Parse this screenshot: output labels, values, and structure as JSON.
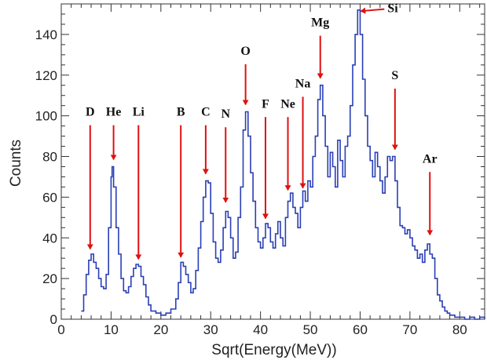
{
  "chart_data": {
    "type": "line",
    "title": "",
    "xlabel": "Sqrt(Energy(MeV))",
    "ylabel": "Counts",
    "xlim": [
      0,
      85
    ],
    "ylim": [
      0,
      155
    ],
    "x_ticks": [
      0,
      10,
      20,
      30,
      40,
      50,
      60,
      70,
      80
    ],
    "y_ticks": [
      0,
      20,
      40,
      60,
      80,
      100,
      120,
      140
    ],
    "x_minor_step": 2,
    "y_minor_step": 5,
    "line_color": "#2a3fb5",
    "arrow_color": "#e01010",
    "grid": false,
    "series": [
      {
        "values": [
          [
            4,
            4
          ],
          [
            4.5,
            12
          ],
          [
            5,
            22
          ],
          [
            5.5,
            29
          ],
          [
            6,
            32
          ],
          [
            6.5,
            28
          ],
          [
            7,
            25
          ],
          [
            7.5,
            20
          ],
          [
            8,
            16
          ],
          [
            8.5,
            15
          ],
          [
            9,
            22
          ],
          [
            9.5,
            45
          ],
          [
            10,
            70
          ],
          [
            10.2,
            75
          ],
          [
            10.5,
            65
          ],
          [
            11,
            45
          ],
          [
            11.5,
            32
          ],
          [
            12,
            20
          ],
          [
            12.5,
            14
          ],
          [
            13,
            13
          ],
          [
            13.5,
            16
          ],
          [
            14,
            21
          ],
          [
            14.5,
            25
          ],
          [
            15,
            27
          ],
          [
            15.5,
            26
          ],
          [
            16,
            21
          ],
          [
            16.5,
            17
          ],
          [
            17,
            11
          ],
          [
            17.5,
            7
          ],
          [
            18,
            4
          ],
          [
            19,
            3
          ],
          [
            20,
            2
          ],
          [
            21,
            3
          ],
          [
            22,
            5
          ],
          [
            23,
            10
          ],
          [
            23.5,
            18
          ],
          [
            24,
            28
          ],
          [
            24.5,
            26
          ],
          [
            25,
            22
          ],
          [
            25.5,
            18
          ],
          [
            26,
            13
          ],
          [
            26.5,
            15
          ],
          [
            27,
            24
          ],
          [
            27.5,
            35
          ],
          [
            28,
            48
          ],
          [
            28.5,
            60
          ],
          [
            29,
            68
          ],
          [
            29.5,
            67
          ],
          [
            30,
            52
          ],
          [
            30.5,
            38
          ],
          [
            31,
            30
          ],
          [
            31.5,
            28
          ],
          [
            32,
            34
          ],
          [
            32.5,
            45
          ],
          [
            33,
            53
          ],
          [
            33.5,
            50
          ],
          [
            34,
            40
          ],
          [
            34.5,
            30
          ],
          [
            35,
            33
          ],
          [
            35.5,
            50
          ],
          [
            36,
            65
          ],
          [
            36.5,
            93
          ],
          [
            37,
            102
          ],
          [
            37.5,
            90
          ],
          [
            38,
            72
          ],
          [
            38.5,
            58
          ],
          [
            39,
            45
          ],
          [
            39.5,
            38
          ],
          [
            40,
            35
          ],
          [
            40.5,
            40
          ],
          [
            41,
            47
          ],
          [
            41.5,
            45
          ],
          [
            42,
            38
          ],
          [
            42.5,
            35
          ],
          [
            43,
            42
          ],
          [
            43.5,
            48
          ],
          [
            44,
            40
          ],
          [
            44.5,
            36
          ],
          [
            45,
            50
          ],
          [
            45.5,
            58
          ],
          [
            46,
            62
          ],
          [
            46.5,
            55
          ],
          [
            47,
            52
          ],
          [
            47.5,
            45
          ],
          [
            48,
            55
          ],
          [
            48.5,
            63
          ],
          [
            49,
            58
          ],
          [
            49.5,
            68
          ],
          [
            50,
            65
          ],
          [
            50.5,
            80
          ],
          [
            51,
            90
          ],
          [
            51.5,
            108
          ],
          [
            52,
            115
          ],
          [
            52.5,
            100
          ],
          [
            53,
            85
          ],
          [
            53.5,
            70
          ],
          [
            54,
            82
          ],
          [
            54.5,
            75
          ],
          [
            55,
            65
          ],
          [
            55.5,
            88
          ],
          [
            56,
            78
          ],
          [
            56.5,
            70
          ],
          [
            57,
            85
          ],
          [
            57.5,
            90
          ],
          [
            58,
            105
          ],
          [
            58.5,
            125
          ],
          [
            59,
            140
          ],
          [
            59.5,
            152
          ],
          [
            60,
            140
          ],
          [
            60.5,
            118
          ],
          [
            61,
            100
          ],
          [
            61.5,
            85
          ],
          [
            62,
            78
          ],
          [
            62.5,
            70
          ],
          [
            63,
            82
          ],
          [
            63.5,
            75
          ],
          [
            64,
            68
          ],
          [
            64.5,
            62
          ],
          [
            65,
            70
          ],
          [
            65.5,
            80
          ],
          [
            66,
            78
          ],
          [
            66.5,
            80
          ],
          [
            67,
            68
          ],
          [
            67.5,
            55
          ],
          [
            68,
            46
          ],
          [
            68.5,
            45
          ],
          [
            69,
            42
          ],
          [
            69.5,
            44
          ],
          [
            70,
            40
          ],
          [
            70.5,
            36
          ],
          [
            71,
            34
          ],
          [
            71.5,
            30
          ],
          [
            72,
            32
          ],
          [
            72.5,
            28
          ],
          [
            73,
            34
          ],
          [
            73.5,
            37
          ],
          [
            74,
            32
          ],
          [
            74.5,
            30
          ],
          [
            75,
            20
          ],
          [
            75.5,
            12
          ],
          [
            76,
            9
          ],
          [
            76.5,
            6
          ],
          [
            77,
            4
          ],
          [
            77.5,
            3
          ],
          [
            78,
            2
          ],
          [
            79,
            1
          ],
          [
            80,
            1
          ],
          [
            81,
            0
          ],
          [
            82,
            1
          ],
          [
            83,
            0
          ],
          [
            84,
            1
          ],
          [
            85,
            0
          ]
        ]
      }
    ],
    "annotations": [
      {
        "label": "D",
        "x": 5.8,
        "y": 33,
        "label_y": 100,
        "pos": "top"
      },
      {
        "label": "He",
        "x": 10.5,
        "y": 77,
        "label_y": 100,
        "pos": "top"
      },
      {
        "label": "Li",
        "x": 15.5,
        "y": 28,
        "label_y": 100,
        "pos": "top"
      },
      {
        "label": "B",
        "x": 24,
        "y": 29,
        "label_y": 100,
        "pos": "top"
      },
      {
        "label": "C",
        "x": 29,
        "y": 70,
        "label_y": 100,
        "pos": "top"
      },
      {
        "label": "N",
        "x": 33,
        "y": 56,
        "label_y": 99,
        "pos": "top"
      },
      {
        "label": "O",
        "x": 37,
        "y": 104,
        "label_y": 130,
        "pos": "top"
      },
      {
        "label": "F",
        "x": 41,
        "y": 48,
        "label_y": 104,
        "pos": "top"
      },
      {
        "label": "Ne",
        "x": 45.5,
        "y": 62,
        "label_y": 104,
        "pos": "top"
      },
      {
        "label": "Na",
        "x": 48.5,
        "y": 63,
        "label_y": 114,
        "pos": "top"
      },
      {
        "label": "Mg",
        "x": 52,
        "y": 117,
        "label_y": 144,
        "pos": "top"
      },
      {
        "label": "Si",
        "x": 59.5,
        "y": 153,
        "label_y": 154,
        "pos": "right"
      },
      {
        "label": "S",
        "x": 67,
        "y": 82,
        "label_y": 118,
        "pos": "top"
      },
      {
        "label": "Ar",
        "x": 74,
        "y": 40,
        "label_y": 77,
        "pos": "top"
      }
    ]
  }
}
